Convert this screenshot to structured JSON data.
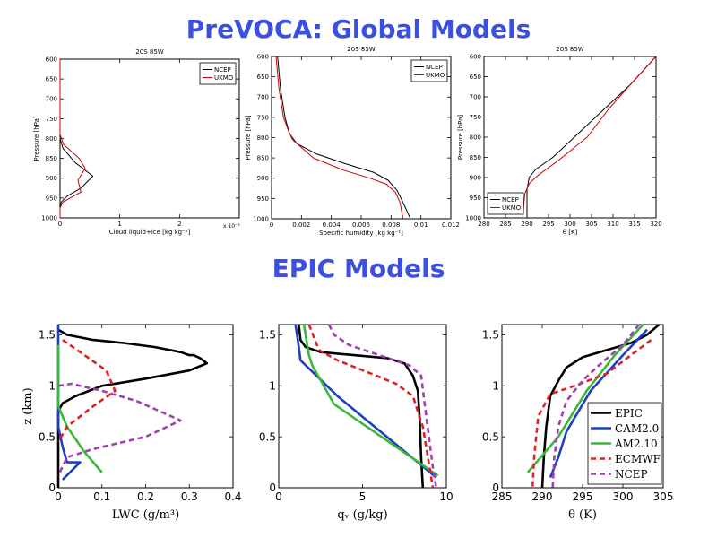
{
  "page": {
    "top_title": "PreVOCA: Global Models",
    "mid_title": "EPIC Models"
  },
  "chart_data": [
    {
      "type": "line",
      "title": "20S 85W",
      "xlabel": "Cloud liquid+ice [kg kg⁻¹]",
      "ylabel": "Pressure [hPa]",
      "xlim": [
        0,
        3
      ],
      "ylim": [
        1000,
        600
      ],
      "yreverse": true,
      "xticks": [
        0,
        1,
        2
      ],
      "xticklabels": [
        "0",
        "1",
        "2"
      ],
      "yticks": [
        600,
        650,
        700,
        750,
        800,
        850,
        900,
        950,
        1000
      ],
      "yticklabels": [
        "600",
        "650",
        "700",
        "750",
        "800",
        "850",
        "900",
        "950",
        "1000"
      ],
      "xmultiplier": "x 10⁻³",
      "legend": "top-right",
      "series": [
        {
          "name": "NCEP",
          "color": "#000000",
          "x": [
            0,
            0,
            0.05,
            0.25,
            0.55,
            0.35,
            0.12,
            0.02,
            0,
            0
          ],
          "y": [
            600,
            800,
            825,
            860,
            895,
            925,
            945,
            960,
            975,
            1000
          ]
        },
        {
          "name": "UKMO",
          "color": "#cc0000",
          "x": [
            0,
            0,
            0.06,
            0.32,
            0.42,
            0.3,
            0.35,
            0.05,
            0,
            0
          ],
          "y": [
            600,
            790,
            815,
            850,
            875,
            905,
            935,
            960,
            975,
            1000
          ]
        }
      ]
    },
    {
      "type": "line",
      "title": "20S 85W",
      "xlabel": "Specific humidity [kg kg⁻¹]",
      "ylabel": "Pressure [hPa]",
      "xlim": [
        0,
        0.012
      ],
      "ylim": [
        1000,
        600
      ],
      "yreverse": true,
      "xticks": [
        0,
        0.002,
        0.004,
        0.006,
        0.008,
        0.01,
        0.012
      ],
      "xticklabels": [
        "0",
        "0.002",
        "0.004",
        "0.006",
        "0.008",
        "0.01",
        "0.012"
      ],
      "yticks": [
        600,
        650,
        700,
        750,
        800,
        850,
        900,
        950,
        1000
      ],
      "yticklabels": [
        "600",
        "650",
        "700",
        "750",
        "800",
        "850",
        "900",
        "950",
        "1000"
      ],
      "legend": "top-right",
      "series": [
        {
          "name": "NCEP",
          "color": "#000000",
          "x": [
            0.0004,
            0.0006,
            0.0009,
            0.0012,
            0.0017,
            0.003,
            0.005,
            0.0068,
            0.0078,
            0.0084,
            0.0088,
            0.0093
          ],
          "y": [
            600,
            680,
            750,
            790,
            815,
            840,
            865,
            885,
            905,
            930,
            960,
            1000
          ]
        },
        {
          "name": "UKMO",
          "color": "#cc0000",
          "x": [
            0.0003,
            0.0005,
            0.0008,
            0.0011,
            0.0014,
            0.0028,
            0.0048,
            0.0066,
            0.0077,
            0.0083,
            0.0086,
            0.0088
          ],
          "y": [
            600,
            680,
            750,
            780,
            805,
            850,
            880,
            900,
            915,
            935,
            960,
            1000
          ]
        }
      ]
    },
    {
      "type": "line",
      "title": "20S 85W",
      "xlabel": "θ [K]",
      "ylabel": "Pressure [hPa]",
      "xlim": [
        280,
        320
      ],
      "ylim": [
        1000,
        600
      ],
      "yreverse": true,
      "xticks": [
        280,
        285,
        290,
        295,
        300,
        305,
        310,
        315,
        320
      ],
      "xticklabels": [
        "280",
        "285",
        "290",
        "295",
        "300",
        "305",
        "310",
        "315",
        "320"
      ],
      "yticks": [
        600,
        650,
        700,
        750,
        800,
        850,
        900,
        950,
        1000
      ],
      "yticklabels": [
        "600",
        "650",
        "700",
        "750",
        "800",
        "850",
        "900",
        "950",
        "1000"
      ],
      "legend": "bottom-left",
      "series": [
        {
          "name": "NCEP",
          "color": "#000000",
          "x": [
            320,
            314,
            308,
            302,
            296,
            292,
            290.5,
            290,
            290
          ],
          "y": [
            600,
            670,
            730,
            790,
            850,
            880,
            900,
            930,
            1000
          ]
        },
        {
          "name": "UKMO",
          "color": "#cc0000",
          "x": [
            320,
            314,
            309,
            304,
            297,
            292.5,
            290.5,
            289.5,
            289
          ],
          "y": [
            600,
            670,
            730,
            800,
            860,
            895,
            915,
            940,
            1000
          ]
        }
      ]
    },
    {
      "type": "line",
      "xlabel": "LWC (g/m³)",
      "ylabel": "z (km)",
      "xlim": [
        0,
        0.4
      ],
      "ylim": [
        0,
        1.6
      ],
      "xticks": [
        0,
        0.1,
        0.2,
        0.3,
        0.4
      ],
      "xticklabels": [
        "0",
        "0.1",
        "0.2",
        "0.3",
        "0.4"
      ],
      "yticks": [
        0,
        0.5,
        1,
        1.5
      ],
      "yticklabels": [
        "0",
        "0.5",
        "1",
        "1.5"
      ],
      "series": [
        {
          "name": "EPIC",
          "color": "#000000",
          "dash": "",
          "x": [
            0,
            0.02,
            0.08,
            0.15,
            0.22,
            0.28,
            0.3,
            0.31,
            0.325,
            0.34,
            0.3,
            0.2,
            0.1,
            0.04,
            0.01,
            0,
            0
          ],
          "y": [
            1.55,
            1.5,
            1.45,
            1.42,
            1.38,
            1.33,
            1.3,
            1.3,
            1.27,
            1.22,
            1.15,
            1.07,
            1.0,
            0.9,
            0.83,
            0.75,
            0
          ]
        },
        {
          "name": "CAM2.0",
          "color": "#1f3fbf",
          "dash": "",
          "x": [
            0,
            0,
            0.01,
            0.02,
            0.05,
            0.01
          ],
          "y": [
            1.6,
            0.6,
            0.4,
            0.25,
            0.25,
            0.08
          ]
        },
        {
          "name": "AM2.10",
          "color": "#3bb83b",
          "dash": "",
          "x": [
            0,
            0,
            0.02,
            0.06,
            0.1
          ],
          "y": [
            1.4,
            0.8,
            0.6,
            0.35,
            0.15
          ]
        },
        {
          "name": "ECMWF",
          "color": "#dd2222",
          "dash": "6,4",
          "x": [
            0.01,
            0.06,
            0.11,
            0.13,
            0.08,
            0.02,
            0
          ],
          "y": [
            1.45,
            1.3,
            1.15,
            0.95,
            0.8,
            0.6,
            0.45
          ]
        },
        {
          "name": "NCEP",
          "color": "#a040b0",
          "dash": "6,4",
          "x": [
            0,
            0.03,
            0.1,
            0.18,
            0.28,
            0.2,
            0.08,
            0.02,
            0
          ],
          "y": [
            1.0,
            1.02,
            0.95,
            0.85,
            0.66,
            0.5,
            0.38,
            0.3,
            0.12
          ]
        }
      ]
    },
    {
      "type": "line",
      "xlabel": "qᵥ (g/kg)",
      "ylabel": "",
      "xlim": [
        0,
        10
      ],
      "ylim": [
        0,
        1.6
      ],
      "xticks": [
        0,
        5,
        10
      ],
      "xticklabels": [
        "0",
        "5",
        "10"
      ],
      "yticks": [
        0,
        0.5,
        1,
        1.5
      ],
      "yticklabels": [
        "0",
        "0.5",
        "1",
        "1.5"
      ],
      "series": [
        {
          "name": "EPIC",
          "color": "#000000",
          "dash": "",
          "x": [
            1.2,
            1.3,
            1.6,
            2.5,
            4.5,
            6.5,
            7.5,
            8.0,
            8.3,
            8.4,
            8.5,
            8.6
          ],
          "y": [
            1.6,
            1.45,
            1.38,
            1.33,
            1.3,
            1.27,
            1.22,
            1.1,
            0.95,
            0.7,
            0.3,
            0
          ]
        },
        {
          "name": "CAM2.0",
          "color": "#1f3fbf",
          "dash": "",
          "x": [
            1.0,
            1.2,
            1.3,
            3.5,
            9.4
          ],
          "y": [
            1.6,
            1.38,
            1.25,
            0.9,
            0.1
          ]
        },
        {
          "name": "AM2.10",
          "color": "#3bb83b",
          "dash": "",
          "x": [
            1.5,
            1.8,
            2.0,
            3.3,
            9.5
          ],
          "y": [
            1.6,
            1.3,
            1.2,
            0.82,
            0.12
          ]
        },
        {
          "name": "ECMWF",
          "color": "#dd2222",
          "dash": "6,4",
          "x": [
            1.8,
            2.4,
            3.5,
            5.5,
            7.0,
            8.0,
            8.6,
            9.0,
            9.2
          ],
          "y": [
            1.6,
            1.35,
            1.25,
            1.12,
            1.02,
            0.9,
            0.6,
            0.2,
            0
          ]
        },
        {
          "name": "NCEP",
          "color": "#a040b0",
          "dash": "6,4",
          "x": [
            3.0,
            3.3,
            4.2,
            6.0,
            7.8,
            8.5,
            8.8,
            9.2,
            9.4
          ],
          "y": [
            1.6,
            1.5,
            1.4,
            1.3,
            1.2,
            1.1,
            0.7,
            0.2,
            0
          ]
        }
      ]
    },
    {
      "type": "line",
      "xlabel": "θ (K)",
      "ylabel": "",
      "xlim": [
        285,
        305
      ],
      "ylim": [
        0,
        1.6
      ],
      "xticks": [
        285,
        290,
        295,
        300,
        305
      ],
      "xticklabels": [
        "285",
        "290",
        "295",
        "300",
        "305"
      ],
      "yticks": [
        0,
        0.5,
        1,
        1.5
      ],
      "yticklabels": [
        "0",
        "0.5",
        "1",
        "1.5"
      ],
      "legend": "bottom-right",
      "series": [
        {
          "name": "EPIC",
          "color": "#000000",
          "dash": "",
          "x": [
            304.5,
            303,
            301,
            298,
            295,
            293,
            292,
            291,
            290.5,
            290.2,
            290
          ],
          "y": [
            1.6,
            1.5,
            1.42,
            1.35,
            1.28,
            1.18,
            1.05,
            0.9,
            0.6,
            0.3,
            0
          ]
        },
        {
          "name": "CAM2.0",
          "color": "#1f3fbf",
          "dash": "",
          "x": [
            303,
            300,
            296,
            293,
            292,
            291
          ],
          "y": [
            1.55,
            1.3,
            0.95,
            0.55,
            0.3,
            0.1
          ]
        },
        {
          "name": "AM2.10",
          "color": "#3bb83b",
          "dash": "",
          "x": [
            302.5,
            299,
            295.5,
            292,
            288.2
          ],
          "y": [
            1.6,
            1.3,
            0.95,
            0.5,
            0.15
          ]
        },
        {
          "name": "ECMWF",
          "color": "#dd2222",
          "dash": "6,4",
          "x": [
            303.5,
            301,
            298,
            294,
            291,
            289.5,
            289,
            288.8
          ],
          "y": [
            1.45,
            1.3,
            1.12,
            1.0,
            0.92,
            0.7,
            0.3,
            0
          ]
        },
        {
          "name": "NCEP",
          "color": "#a040b0",
          "dash": "6,4",
          "x": [
            302,
            300,
            297,
            295,
            293,
            292,
            291.5,
            291.3
          ],
          "y": [
            1.6,
            1.4,
            1.2,
            1.05,
            0.85,
            0.6,
            0.3,
            0
          ]
        }
      ]
    }
  ]
}
